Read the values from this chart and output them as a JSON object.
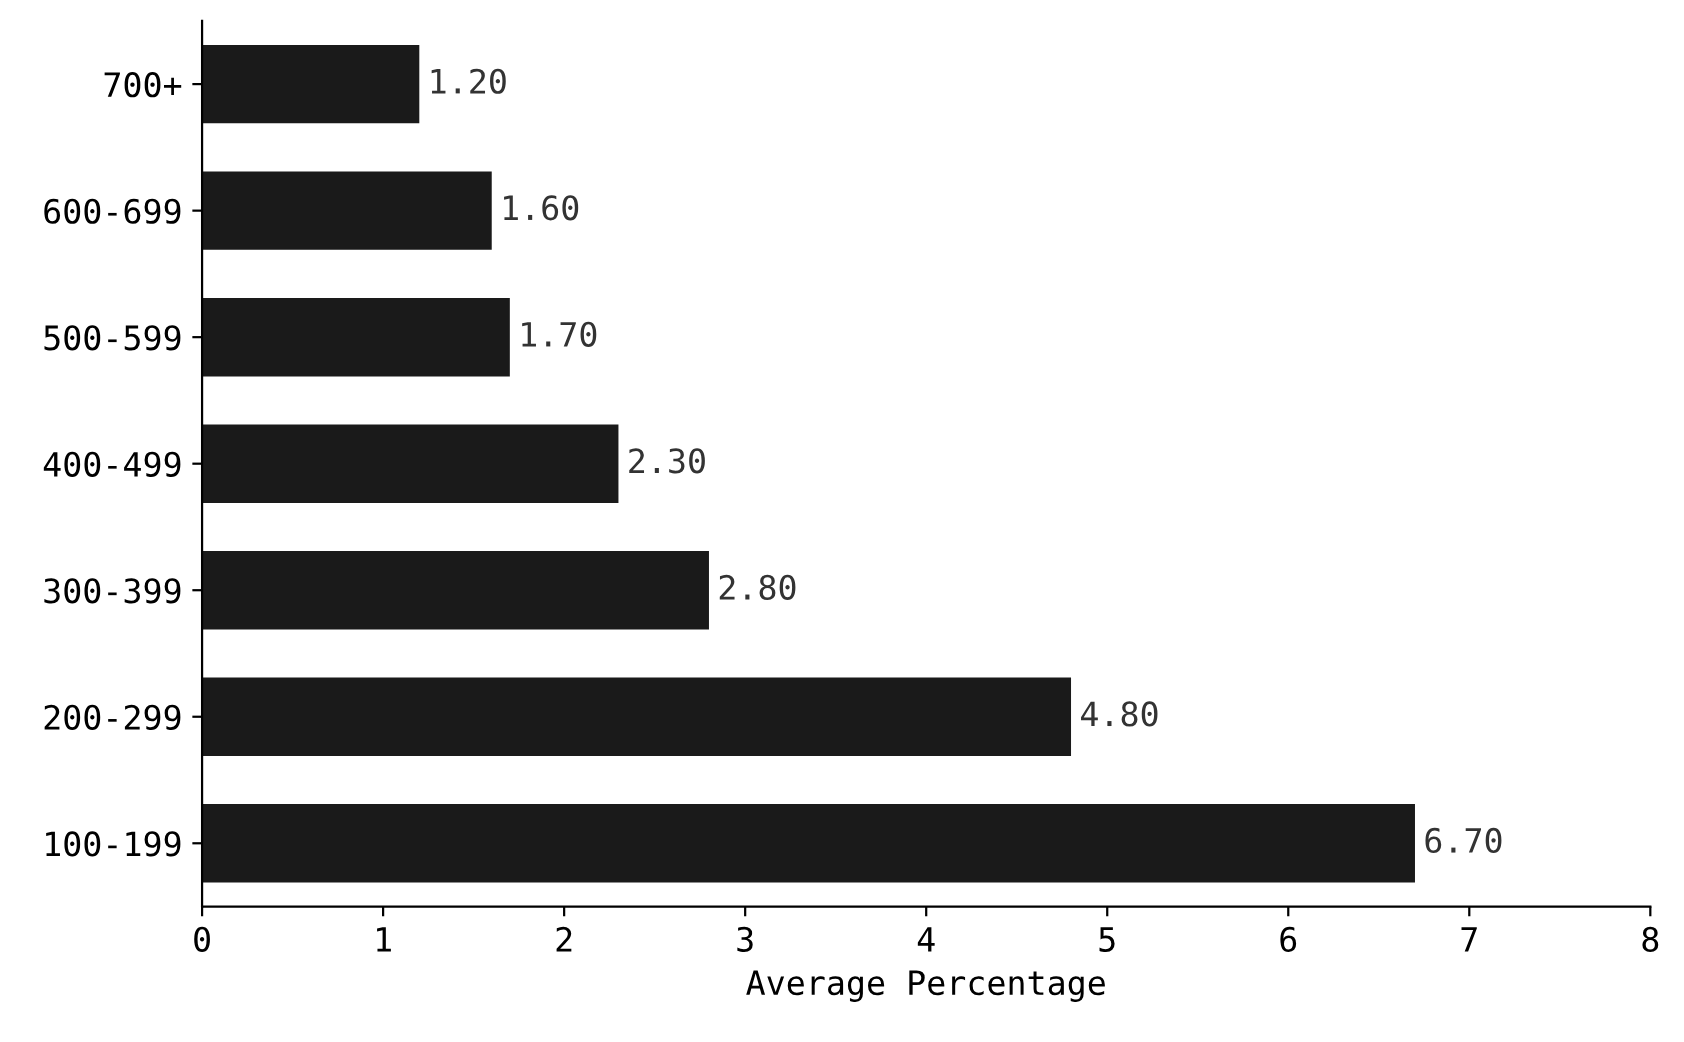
{
  "chart_data": {
    "type": "bar",
    "orientation": "horizontal",
    "xlabel": "Average Percentage",
    "categories": [
      "700+",
      "600-699",
      "500-599",
      "400-499",
      "300-399",
      "200-299",
      "100-199"
    ],
    "values": [
      1.2,
      1.6,
      1.7,
      2.3,
      2.8,
      4.8,
      6.7
    ],
    "value_labels": [
      "1.20",
      "1.60",
      "1.70",
      "2.30",
      "2.80",
      "4.80",
      "6.70"
    ],
    "color": "#1a1a1a",
    "xlim": [
      0,
      8
    ],
    "xticks": [
      0,
      1,
      2,
      3,
      4,
      5,
      6,
      7,
      8
    ],
    "grid": false,
    "legend": false
  }
}
